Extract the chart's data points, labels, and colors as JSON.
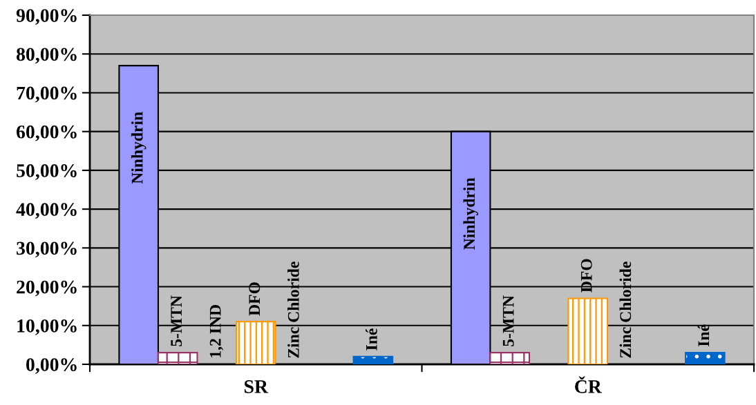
{
  "chart_data": {
    "type": "bar",
    "categories": [
      "SR",
      "ČR"
    ],
    "series": [
      {
        "name": "Ninhydrin",
        "color": "#9999ff",
        "values": [
          77,
          60
        ]
      },
      {
        "name": "5-MTN",
        "color": "#993366",
        "values": [
          3,
          3
        ]
      },
      {
        "name": "1,2 IND",
        "values": [
          0,
          null
        ]
      },
      {
        "name": "DFO",
        "color": "#ff9900",
        "values": [
          11,
          17
        ]
      },
      {
        "name": "Zinc Chloride",
        "values": [
          0,
          0
        ]
      },
      {
        "values": [
          null,
          null
        ]
      },
      {
        "name": "Iné",
        "color": "#0066cc",
        "values": [
          2,
          3
        ]
      }
    ],
    "ylim": [
      0,
      90
    ],
    "yticks": [
      {
        "value": 0,
        "label": "0,00%"
      },
      {
        "value": 10,
        "label": "10,00%"
      },
      {
        "value": 20,
        "label": "20,00%"
      },
      {
        "value": 30,
        "label": "30,00%"
      },
      {
        "value": 40,
        "label": "40,00%"
      },
      {
        "value": 50,
        "label": "50,00%"
      },
      {
        "value": 60,
        "label": "60,00%"
      },
      {
        "value": 70,
        "label": "70,00%"
      },
      {
        "value": 80,
        "label": "80,00%"
      },
      {
        "value": 90,
        "label": "90,00%"
      }
    ],
    "grid": "y"
  }
}
